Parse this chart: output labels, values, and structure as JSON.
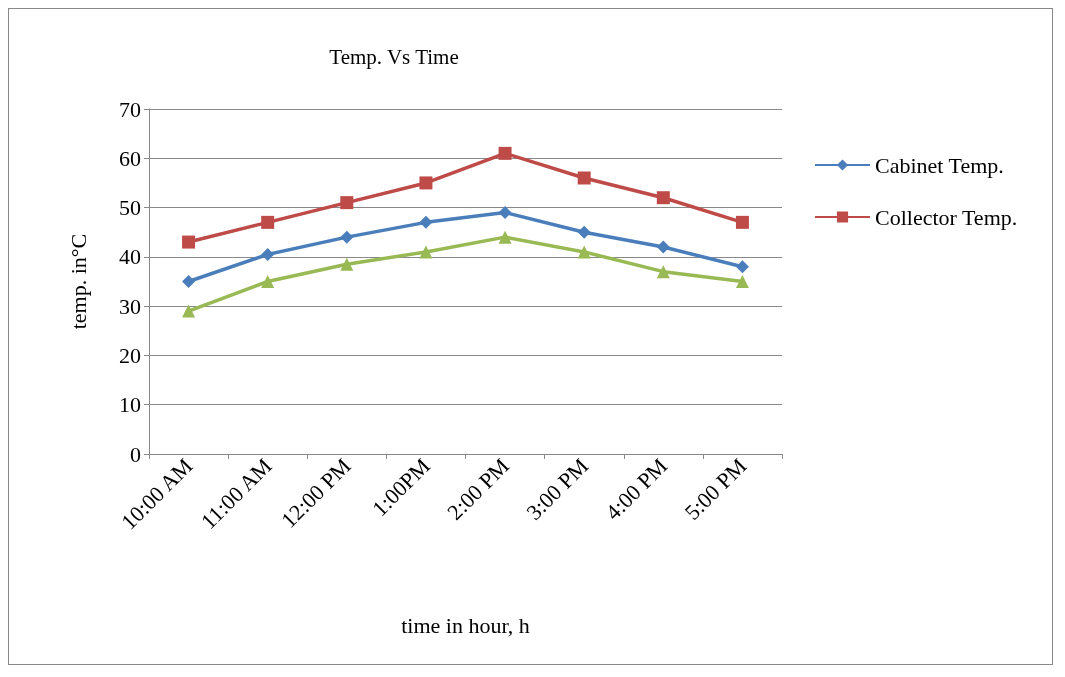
{
  "chart_data": {
    "type": "line",
    "title": "Temp. Vs Time",
    "xlabel": "time in hour, h",
    "ylabel": "temp. in°C",
    "categories": [
      "10:00 AM",
      "11:00 AM",
      "12:00 PM",
      "1:00PM",
      "2:00 PM",
      "3:00 PM",
      "4:00 PM",
      "5:00 PM"
    ],
    "series": [
      {
        "name": "Cabinet Temp.",
        "color": "#4a7ebb",
        "marker": "diamond",
        "values": [
          35,
          40.5,
          44,
          47,
          49,
          45,
          42,
          38
        ]
      },
      {
        "name": "Collector Temp.",
        "color": "#be4b48",
        "marker": "square",
        "values": [
          43,
          47,
          51,
          55,
          61,
          56,
          52,
          47
        ]
      },
      {
        "color": "#98b954",
        "marker": "triangle",
        "values": [
          29,
          35,
          38.5,
          41,
          44,
          41,
          37,
          35
        ]
      }
    ],
    "ylim": [
      0,
      70
    ],
    "yticks": [
      0,
      10,
      20,
      30,
      40,
      50,
      60,
      70
    ],
    "grid": "y",
    "legend": "right"
  }
}
